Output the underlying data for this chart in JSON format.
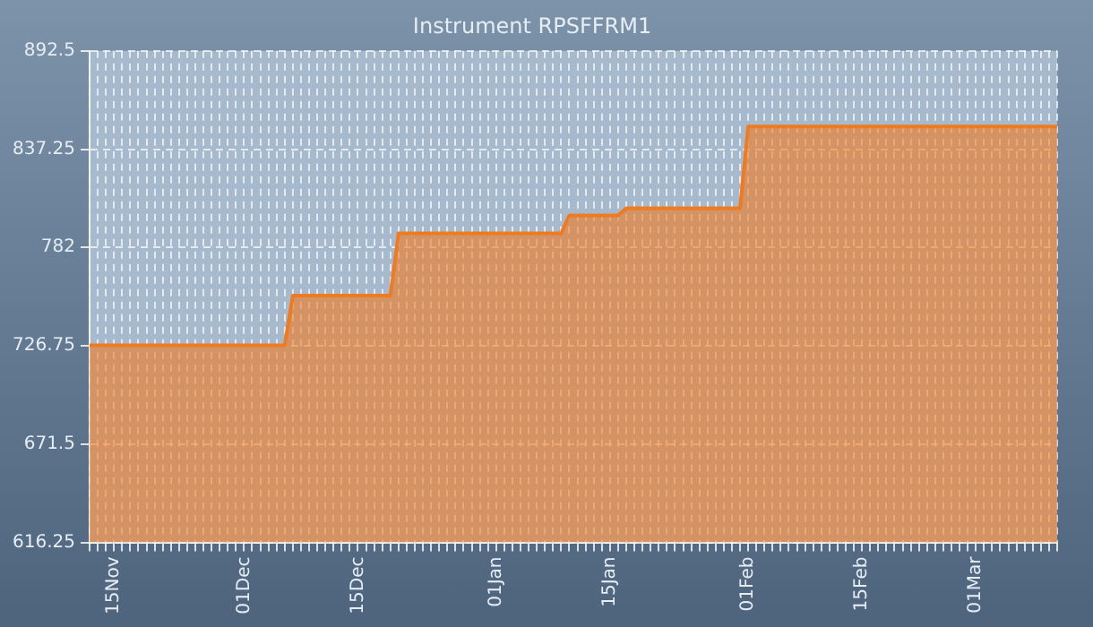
{
  "chart_data": {
    "type": "area",
    "title": "Instrument RPSFFRM1",
    "categories": [
      null,
      null,
      null,
      "15Nov",
      null,
      null,
      null,
      null,
      null,
      null,
      null,
      null,
      null,
      null,
      null,
      null,
      null,
      null,
      null,
      "01Dec",
      null,
      null,
      null,
      null,
      null,
      null,
      null,
      null,
      null,
      null,
      null,
      null,
      null,
      "15Dec",
      null,
      null,
      null,
      null,
      null,
      null,
      null,
      null,
      null,
      null,
      null,
      null,
      null,
      null,
      null,
      null,
      "01Jan",
      null,
      null,
      null,
      null,
      null,
      null,
      null,
      null,
      null,
      null,
      null,
      null,
      null,
      "15Jan",
      null,
      null,
      null,
      null,
      null,
      null,
      null,
      null,
      null,
      null,
      null,
      null,
      null,
      null,
      null,
      null,
      "01Feb",
      null,
      null,
      null,
      null,
      null,
      null,
      null,
      null,
      null,
      null,
      null,
      null,
      null,
      "15Feb",
      null,
      null,
      null,
      null,
      null,
      null,
      null,
      null,
      null,
      null,
      null,
      null,
      null,
      "01Mar",
      null,
      null,
      null,
      null,
      null,
      null,
      null,
      null,
      null,
      null
    ],
    "series": [
      {
        "color": "#f07a20",
        "values": [
          727,
          727,
          727,
          727,
          727,
          727,
          727,
          727,
          727,
          727,
          727,
          727,
          727,
          727,
          727,
          727,
          727,
          727,
          727,
          727,
          727,
          727,
          727,
          727,
          727,
          755,
          755,
          755,
          755,
          755,
          755,
          755,
          755,
          755,
          755,
          755,
          755,
          755,
          790,
          790,
          790,
          790,
          790,
          790,
          790,
          790,
          790,
          790,
          790,
          790,
          790,
          790,
          790,
          790,
          790,
          790,
          790,
          790,
          790,
          800,
          800,
          800,
          800,
          800,
          800,
          800,
          804,
          804,
          804,
          804,
          804,
          804,
          804,
          804,
          804,
          804,
          804,
          804,
          804,
          804,
          804,
          850,
          850,
          850,
          850,
          850,
          850,
          850,
          850,
          850,
          850,
          850,
          850,
          850,
          850,
          850,
          850,
          850,
          850,
          850,
          850,
          850,
          850,
          850,
          850,
          850,
          850,
          850,
          850,
          850,
          850,
          850,
          850,
          850,
          850,
          850,
          850,
          850,
          850,
          850
        ]
      }
    ],
    "ylim": [
      616.25,
      892.5
    ],
    "yticks": [
      616.25,
      671.5,
      726.75,
      782,
      837.25,
      892.5
    ],
    "grid": true,
    "line_style": "solid",
    "marker": "none",
    "legend": false
  }
}
